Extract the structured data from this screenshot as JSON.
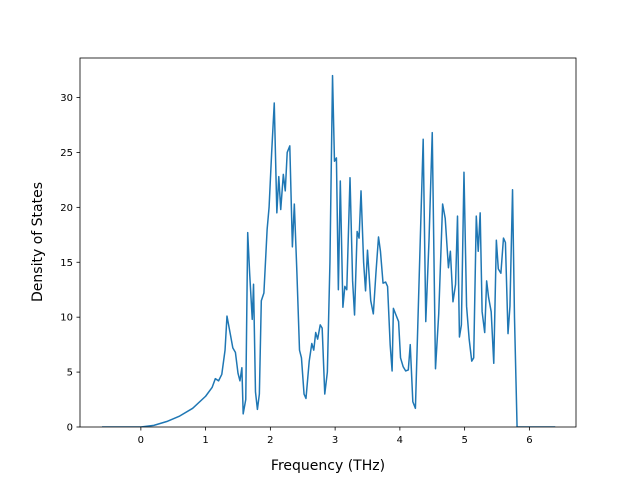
{
  "chart_data": {
    "type": "line",
    "xlabel": "Frequency (THz)",
    "ylabel": "Density of States",
    "xlim": [
      -0.94,
      6.72
    ],
    "ylim": [
      0,
      33.6
    ],
    "xticks": [
      0,
      1,
      2,
      3,
      4,
      5,
      6
    ],
    "yticks": [
      0,
      5,
      10,
      15,
      20,
      25,
      30
    ],
    "series": [
      {
        "color": "#1f77b4",
        "x": [
          -0.6,
          0,
          0.2,
          0.4,
          0.6,
          0.8,
          1.0,
          1.1,
          1.15,
          1.2,
          1.25,
          1.3,
          1.33,
          1.38,
          1.42,
          1.46,
          1.5,
          1.53,
          1.56,
          1.58,
          1.62,
          1.65,
          1.68,
          1.72,
          1.74,
          1.77,
          1.8,
          1.83,
          1.86,
          1.9,
          1.95,
          1.98,
          2.02,
          2.06,
          2.1,
          2.13,
          2.16,
          2.2,
          2.23,
          2.26,
          2.3,
          2.34,
          2.37,
          2.41,
          2.45,
          2.48,
          2.52,
          2.55,
          2.6,
          2.64,
          2.67,
          2.7,
          2.73,
          2.77,
          2.8,
          2.84,
          2.88,
          2.92,
          2.96,
          2.99,
          3.02,
          3.05,
          3.08,
          3.12,
          3.15,
          3.18,
          3.23,
          3.27,
          3.3,
          3.34,
          3.37,
          3.4,
          3.44,
          3.47,
          3.5,
          3.55,
          3.59,
          3.63,
          3.67,
          3.7,
          3.74,
          3.78,
          3.81,
          3.85,
          3.88,
          3.9,
          3.94,
          3.98,
          4.01,
          4.05,
          4.09,
          4.13,
          4.16,
          4.2,
          4.24,
          4.3,
          4.36,
          4.4,
          4.45,
          4.5,
          4.55,
          4.6,
          4.66,
          4.7,
          4.75,
          4.78,
          4.82,
          4.86,
          4.89,
          4.92,
          4.95,
          4.99,
          5.03,
          5.07,
          5.11,
          5.14,
          5.18,
          5.21,
          5.24,
          5.27,
          5.31,
          5.34,
          5.37,
          5.41,
          5.45,
          5.49,
          5.52,
          5.56,
          5.6,
          5.63,
          5.67,
          5.7,
          5.74,
          5.77,
          5.81,
          6.4
        ],
        "values": [
          0,
          0,
          0.15,
          0.5,
          1.0,
          1.7,
          2.8,
          3.6,
          4.4,
          4.2,
          4.8,
          7.0,
          10.1,
          8.5,
          7.2,
          6.8,
          4.9,
          4.2,
          5.4,
          1.2,
          2.5,
          17.7,
          14.0,
          9.8,
          13.0,
          3.2,
          1.6,
          3.0,
          11.5,
          12.2,
          18.0,
          20.0,
          25.0,
          29.5,
          19.5,
          22.8,
          19.8,
          23.0,
          21.5,
          25.0,
          25.6,
          16.4,
          20.3,
          14.0,
          7.0,
          6.3,
          3.0,
          2.6,
          6.0,
          7.6,
          7.0,
          8.6,
          8.0,
          9.3,
          9.0,
          3.0,
          5.0,
          15.0,
          32.0,
          24.2,
          24.5,
          12.5,
          22.4,
          10.9,
          12.8,
          12.5,
          22.7,
          13.3,
          10.2,
          17.8,
          17.2,
          21.5,
          15.0,
          12.4,
          16.1,
          11.5,
          10.3,
          14.0,
          17.3,
          16.0,
          13.1,
          13.2,
          12.8,
          7.5,
          5.1,
          10.8,
          10.2,
          9.6,
          6.3,
          5.5,
          5.1,
          5.2,
          7.5,
          2.3,
          1.7,
          14.0,
          26.2,
          9.6,
          17.0,
          26.8,
          5.3,
          10.3,
          20.3,
          19.0,
          14.5,
          16.0,
          11.4,
          13.0,
          19.2,
          8.2,
          9.3,
          23.2,
          11.0,
          8.0,
          6.0,
          6.3,
          19.2,
          16.0,
          19.5,
          10.5,
          8.6,
          13.3,
          11.8,
          10.5,
          5.8,
          17.0,
          14.4,
          14.0,
          17.2,
          16.8,
          8.5,
          11.0,
          21.6,
          10.0,
          0,
          0
        ]
      }
    ]
  }
}
